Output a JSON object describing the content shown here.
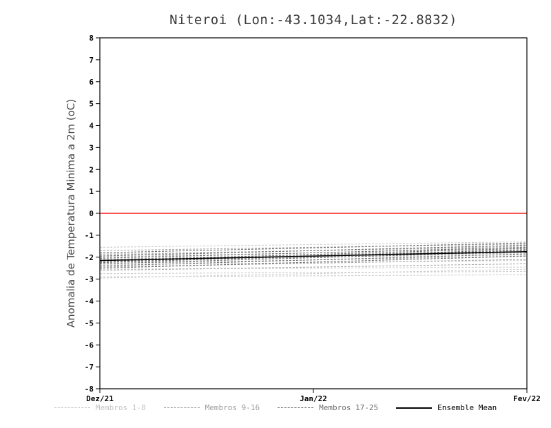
{
  "chart_data": {
    "type": "line",
    "title": "Niteroi (Lon:-43.1034,Lat:-22.8832)",
    "xlabel": "",
    "ylabel": "Anomalia de Temperatura Minima a 2m (oC)",
    "ylim": [
      -8,
      8
    ],
    "ytick_step": 1,
    "x_ticklabels": [
      "Dez/21",
      "Jan/22",
      "Fev/22"
    ],
    "grid": false,
    "legend_position": "bottom",
    "zero_line": {
      "y": 0,
      "color": "#fa3c3c"
    },
    "frame_color": "#000000",
    "groups": [
      {
        "name": "Membros 1-8",
        "color": "#cccccc",
        "dash": "3,2",
        "members": [
          [
            -1.55,
            -1.3
          ],
          [
            -1.85,
            -1.55
          ],
          [
            -2.1,
            -1.9
          ],
          [
            -2.35,
            -2.15
          ],
          [
            -2.55,
            -2.45
          ],
          [
            -2.75,
            -2.65
          ],
          [
            -2.9,
            -2.8
          ],
          [
            -2.95,
            -2.55
          ]
        ]
      },
      {
        "name": "Membros 9-16",
        "color": "#a6a6a6",
        "dash": "3,2",
        "members": [
          [
            -1.7,
            -1.4
          ],
          [
            -1.9,
            -1.5
          ],
          [
            -2.0,
            -1.6
          ],
          [
            -2.1,
            -1.7
          ],
          [
            -2.2,
            -1.8
          ],
          [
            -2.3,
            -1.95
          ],
          [
            -2.45,
            -2.1
          ],
          [
            -2.6,
            -2.3
          ]
        ]
      },
      {
        "name": "Membros 17-25",
        "color": "#707070",
        "dash": "3,2",
        "members": [
          [
            -1.8,
            -1.35
          ],
          [
            -1.95,
            -1.45
          ],
          [
            -2.05,
            -1.55
          ],
          [
            -2.15,
            -1.6
          ],
          [
            -2.2,
            -1.7
          ],
          [
            -2.3,
            -1.75
          ],
          [
            -2.4,
            -1.85
          ],
          [
            -2.5,
            -1.95
          ],
          [
            -2.25,
            -1.65
          ]
        ]
      }
    ],
    "ensemble_mean": {
      "name": "Ensemble Mean",
      "color": "#000000",
      "values": [
        -2.15,
        -1.75
      ]
    },
    "legend": [
      {
        "label": "Membros 1-8",
        "color": "#c4c4c4",
        "style": "dashed"
      },
      {
        "label": "Membros 9-16",
        "color": "#9b9b9b",
        "style": "dashed"
      },
      {
        "label": "Membros 17-25",
        "color": "#6e6e6e",
        "style": "dashed"
      },
      {
        "label": "Ensemble Mean",
        "color": "#000000",
        "style": "solid"
      }
    ]
  }
}
